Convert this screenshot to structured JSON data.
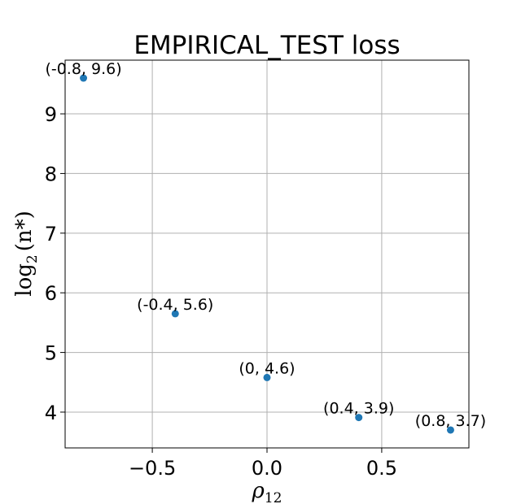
{
  "chart_data": {
    "type": "scatter",
    "title": "EMPIRICAL_TEST loss",
    "xlabel_main": "ρ",
    "xlabel_sub": "12",
    "ylabel_prefix": "log",
    "ylabel_sub": "2",
    "ylabel_arg": "(n*)",
    "xlim": [
      -0.88,
      0.88
    ],
    "ylim": [
      3.4,
      9.9
    ],
    "x_ticks": [
      -0.5,
      0.0,
      0.5
    ],
    "x_tick_labels": [
      "−0.5",
      "0.0",
      "0.5"
    ],
    "y_ticks": [
      4,
      5,
      6,
      7,
      8,
      9
    ],
    "y_tick_labels": [
      "4",
      "5",
      "6",
      "7",
      "8",
      "9"
    ],
    "grid": true,
    "marker_color": "#1f77b4",
    "points": [
      {
        "x": -0.8,
        "y": 9.6,
        "label": "(-0.8, 9.6)"
      },
      {
        "x": -0.4,
        "y": 5.65,
        "label": "(-0.4, 5.6)"
      },
      {
        "x": 0.0,
        "y": 4.58,
        "label": "(0, 4.6)"
      },
      {
        "x": 0.4,
        "y": 3.91,
        "label": "(0.4, 3.9)"
      },
      {
        "x": 0.8,
        "y": 3.7,
        "label": "(0.8, 3.7)"
      }
    ]
  }
}
